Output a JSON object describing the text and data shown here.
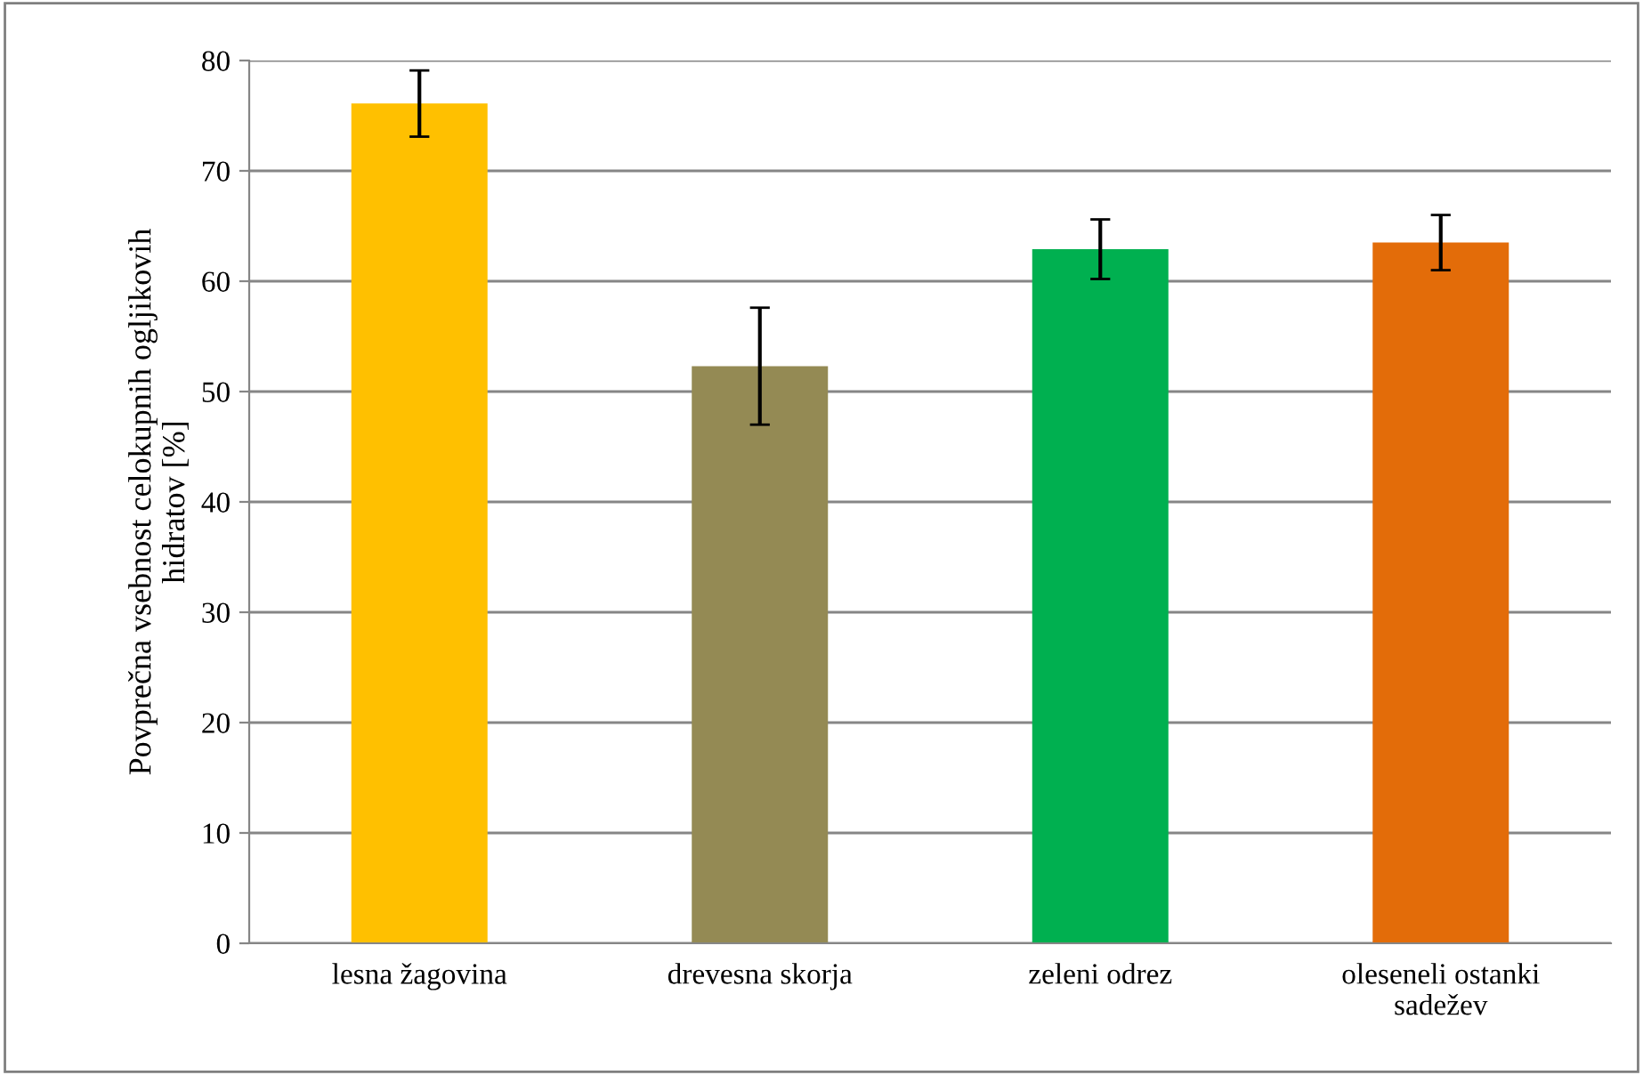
{
  "chart_data": {
    "type": "bar",
    "ylabel": "Povprečna vsebnost celokupnih ogljikovih\nhidratov [%]",
    "categories": [
      "lesna žagovina",
      "drevesna skorja",
      "zeleni odrez",
      "oleseneli ostanki\nsadežev"
    ],
    "values": [
      76.1,
      52.3,
      62.9,
      63.5
    ],
    "errors": [
      3.0,
      5.3,
      2.7,
      2.5
    ],
    "colors": [
      "#ffc000",
      "#948a54",
      "#00b050",
      "#e36c09"
    ],
    "ylim": [
      0,
      80
    ],
    "yticks": [
      0,
      10,
      20,
      30,
      40,
      50,
      60,
      70,
      80
    ],
    "grid": "y"
  }
}
